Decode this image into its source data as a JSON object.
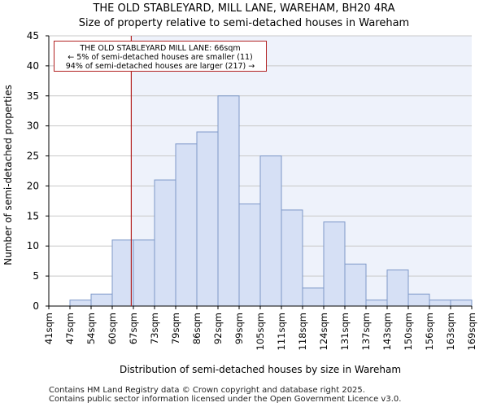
{
  "header": {
    "title_line1": "THE OLD STABLEYARD, MILL LANE, WAREHAM, BH20 4RA",
    "title_line2": "Size of property relative to semi-detached houses in Wareham"
  },
  "annotation": {
    "line1": "THE OLD STABLEYARD MILL LANE: 66sqm",
    "line2": "← 5% of semi-detached houses are smaller (11)",
    "line3": "94% of semi-detached houses are larger (217) →"
  },
  "footer": {
    "line1": "Contains HM Land Registry data © Crown copyright and database right 2025.",
    "line2": "Contains public sector information licensed under the Open Government Licence v3.0."
  },
  "colors": {
    "bar_fill": "#d6e0f5",
    "bar_stroke": "#7d98c8",
    "marker": "#b22222",
    "grid": "#c8c8c8",
    "highlight_bg": "#eef2fb"
  },
  "chart_data": {
    "type": "bar",
    "title": "Size of property relative to semi-detached houses in Wareham",
    "xlabel": "Distribution of semi-detached houses by size in Wareham",
    "ylabel": "Number of semi-detached properties",
    "bin_edges": [
      "41sqm",
      "47sqm",
      "54sqm",
      "60sqm",
      "67sqm",
      "73sqm",
      "79sqm",
      "86sqm",
      "92sqm",
      "99sqm",
      "105sqm",
      "111sqm",
      "118sqm",
      "124sqm",
      "131sqm",
      "137sqm",
      "143sqm",
      "150sqm",
      "156sqm",
      "163sqm",
      "169sqm"
    ],
    "values": [
      0,
      1,
      2,
      11,
      11,
      21,
      27,
      29,
      35,
      17,
      25,
      16,
      3,
      14,
      7,
      1,
      6,
      2,
      1,
      1
    ],
    "ylim": [
      0,
      45
    ],
    "yticks": [
      0,
      5,
      10,
      15,
      20,
      25,
      30,
      35,
      40,
      45
    ],
    "marker_value_sqm": 66,
    "marker_bin_position": 3.9,
    "grid": true
  }
}
